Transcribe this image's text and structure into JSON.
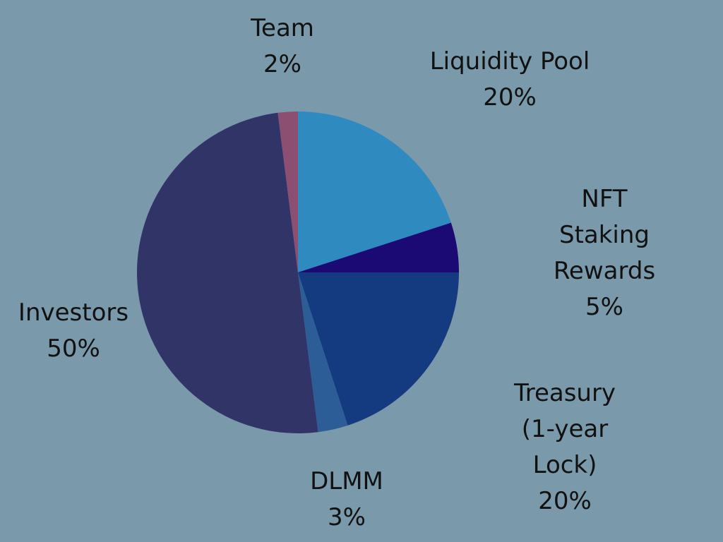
{
  "chart_data": {
    "type": "pie",
    "categories": [
      "Liquidity Pool",
      "NFT Staking\nRewards",
      "Treasury\n(1-year Lock)",
      "DLMM",
      "Investors",
      "Team"
    ],
    "values": [
      20,
      5,
      20,
      3,
      50,
      2
    ],
    "value_labels": [
      "20%",
      "5%",
      "20%",
      "3%",
      "50%",
      "2%"
    ],
    "colors": [
      "#2f8bbf",
      "#1c0a74",
      "#143b80",
      "#2d5d97",
      "#313467",
      "#8c4f72"
    ]
  }
}
